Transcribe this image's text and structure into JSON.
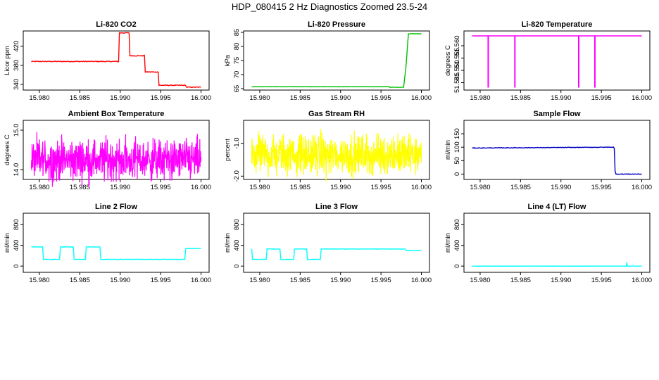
{
  "page": {
    "title": "HDP_080415  2 Hz Diagnostics Zoomed 23.5-24"
  },
  "chart_data": [
    {
      "type": "line",
      "title": "Li-820 CO2",
      "xlabel": "",
      "ylabel": "Licor ppm",
      "xlim": [
        15.978,
        16.001
      ],
      "ylim": [
        328,
        452
      ],
      "xticks": [
        "15.980",
        "15.985",
        "15.990",
        "15.995",
        "16.000"
      ],
      "yticks": [
        "340",
        "380",
        "420"
      ],
      "grid": false,
      "color": "#ff0000",
      "series": [
        {
          "x": [
            15.979,
            15.9898,
            15.9899,
            15.9911,
            15.9912,
            15.993,
            15.9931,
            15.9947,
            15.9948,
            15.9981,
            15.9982,
            16.0
          ],
          "y": [
            388,
            388,
            448,
            448,
            400,
            400,
            366,
            366,
            338,
            338,
            334,
            334
          ],
          "noise": 0.8
        }
      ]
    },
    {
      "type": "line",
      "title": "Li-820 Pressure",
      "xlabel": "",
      "ylabel": "kPa",
      "xlim": [
        15.978,
        16.001
      ],
      "ylim": [
        64.5,
        85.5
      ],
      "xticks": [
        "15.980",
        "15.985",
        "15.990",
        "15.995",
        "16.000"
      ],
      "yticks": [
        "65",
        "70",
        "75",
        "80",
        "85"
      ],
      "grid": false,
      "color": "#00c000",
      "series": [
        {
          "x": [
            15.979,
            15.996,
            15.9961,
            15.9978,
            15.9981,
            15.9983,
            15.9984,
            16.0
          ],
          "y": [
            65.7,
            65.7,
            65.5,
            65.5,
            73,
            81,
            84.5,
            84.5
          ],
          "noise": 0.05
        }
      ]
    },
    {
      "type": "line",
      "title": "Li-820 Temperature",
      "xlabel": "",
      "ylabel": "degrees C",
      "xlim": [
        15.978,
        16.001
      ],
      "ylim": [
        51.542,
        51.566
      ],
      "xticks": [
        "15.980",
        "15.985",
        "15.990",
        "15.995",
        "16.000"
      ],
      "yticks": [
        "51.545",
        "51.550",
        "51.555",
        "51.560"
      ],
      "grid": false,
      "color": "#ff00ff",
      "baseline": 51.564,
      "spikes": [
        15.981,
        15.9843,
        15.9922,
        15.9942
      ],
      "spike_min": 51.543
    },
    {
      "type": "line",
      "title": "Ambient Box Temperature",
      "xlabel": "",
      "ylabel": "degrees C",
      "xlim": [
        15.978,
        16.001
      ],
      "ylim": [
        13.75,
        15.25
      ],
      "xticks": [
        "15.980",
        "15.985",
        "15.990",
        "15.995",
        "16.000"
      ],
      "yticks": [
        "14.0",
        "15.0"
      ],
      "grid": false,
      "color": "#ff00ff",
      "noise_band": {
        "x0": 15.979,
        "x1": 16.0,
        "mean": 14.25,
        "amp": 0.55
      }
    },
    {
      "type": "line",
      "title": "Gas Stream RH",
      "xlabel": "",
      "ylabel": "percent",
      "xlim": [
        15.978,
        16.001
      ],
      "ylim": [
        -2.1,
        -0.3
      ],
      "xticks": [
        "15.980",
        "15.985",
        "15.990",
        "15.995",
        "16.000"
      ],
      "yticks": [
        "-2.0",
        "-1.0"
      ],
      "grid": false,
      "color": "#ffff00",
      "noise_band": {
        "x0": 15.979,
        "x1": 16.0,
        "mean": -1.35,
        "amp": 0.65
      }
    },
    {
      "type": "line",
      "title": "Sample Flow",
      "xlabel": "",
      "ylabel": "ml/min",
      "xlim": [
        15.978,
        16.001
      ],
      "ylim": [
        -20,
        200
      ],
      "xticks": [
        "15.980",
        "15.985",
        "15.990",
        "15.995",
        "16.000"
      ],
      "yticks": [
        "0",
        "50",
        "100",
        "150"
      ],
      "grid": false,
      "color": "#0000c0",
      "series": [
        {
          "x": [
            15.979,
            15.9965,
            15.9966,
            15.9967,
            15.9968,
            16.0
          ],
          "y": [
            97,
            100,
            95,
            10,
            0,
            0
          ],
          "noise": 1
        }
      ]
    },
    {
      "type": "line",
      "title": "Line 2 Flow",
      "xlabel": "",
      "ylabel": "ml/min",
      "xlim": [
        15.978,
        16.001
      ],
      "ylim": [
        -120,
        1020
      ],
      "xticks": [
        "15.980",
        "15.985",
        "15.990",
        "15.995",
        "16.000"
      ],
      "yticks": [
        "0",
        "400",
        "800"
      ],
      "grid": false,
      "color": "#00ffff",
      "series": [
        {
          "x": [
            15.979,
            15.9791,
            15.9804,
            15.9805,
            15.9825,
            15.9826,
            15.9842,
            15.9843,
            15.9857,
            15.9858,
            15.9875,
            15.9876,
            15.998,
            15.9981,
            16.0
          ],
          "y": [
            380,
            370,
            370,
            130,
            130,
            370,
            370,
            130,
            130,
            370,
            370,
            130,
            130,
            340,
            340
          ],
          "noise": 4
        }
      ]
    },
    {
      "type": "line",
      "title": "Line 3 Flow",
      "xlabel": "",
      "ylabel": "ml/min",
      "xlim": [
        15.978,
        16.001
      ],
      "ylim": [
        -120,
        1020
      ],
      "xticks": [
        "15.980",
        "15.985",
        "15.990",
        "15.995",
        "16.000"
      ],
      "yticks": [
        "0",
        "400",
        "800"
      ],
      "grid": false,
      "color": "#00ffff",
      "series": [
        {
          "x": [
            15.979,
            15.9791,
            15.9792,
            15.9808,
            15.9809,
            15.9825,
            15.9826,
            15.9842,
            15.9843,
            15.9858,
            15.9859,
            15.9875,
            15.9876,
            15.998,
            15.9981,
            16.0
          ],
          "y": [
            330,
            130,
            130,
            130,
            330,
            330,
            130,
            130,
            330,
            330,
            130,
            130,
            330,
            330,
            300,
            300
          ],
          "noise": 4
        }
      ]
    },
    {
      "type": "line",
      "title": "Line 4 (LT) Flow",
      "xlabel": "",
      "ylabel": "ml/min",
      "xlim": [
        15.978,
        16.001
      ],
      "ylim": [
        -120,
        1020
      ],
      "xticks": [
        "15.980",
        "15.985",
        "15.990",
        "15.995",
        "16.000"
      ],
      "yticks": [
        "0",
        "400",
        "800"
      ],
      "grid": false,
      "color": "#00ffff",
      "series": [
        {
          "x": [
            15.979,
            15.9981,
            15.99815,
            15.9982,
            15.99825,
            16.0
          ],
          "y": [
            0,
            0,
            70,
            5,
            0,
            0
          ],
          "noise": 2
        }
      ]
    }
  ]
}
